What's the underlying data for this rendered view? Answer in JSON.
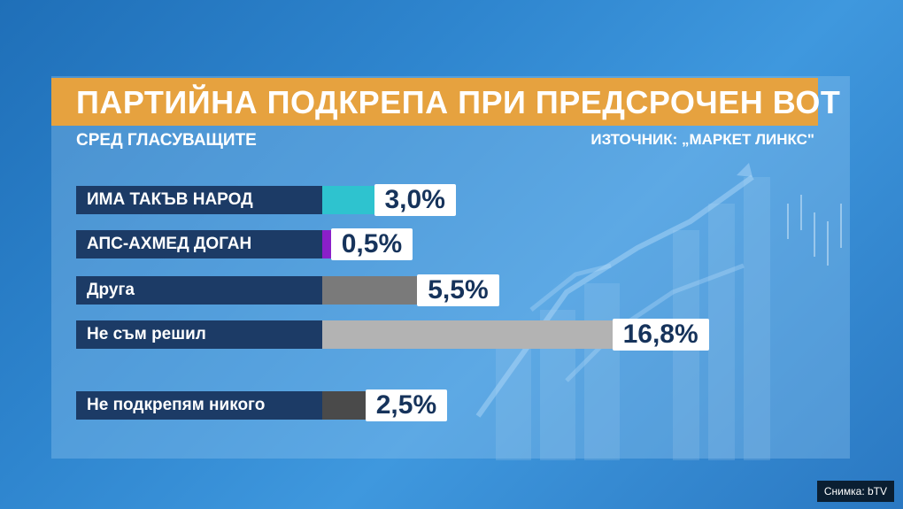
{
  "chart_data": {
    "type": "bar",
    "title": "ПАРТИЙНА ПОДКРЕПА ПРИ ПРЕДСРОЧЕН ВОТ",
    "subtitle": "СРЕД ГЛАСУВАЩИТЕ",
    "source": "ИЗТОЧНИК: „МАРКЕТ ЛИНКС\"",
    "categories": [
      "ИМА ТАКЪВ НАРОД",
      "АПС-АХМЕД ДОГАН",
      "Друга",
      "Не съм решил",
      "Не подкрепям никого"
    ],
    "values": [
      3.0,
      0.5,
      5.5,
      16.8,
      2.5
    ],
    "value_labels": [
      "3,0%",
      "0,5%",
      "5,5%",
      "16,8%",
      "2,5%"
    ],
    "colors": [
      "#2ec3cf",
      "#8b1fc9",
      "#7a7a7a",
      "#b3b3b3",
      "#4a4a4a"
    ],
    "unit": "%",
    "orientation": "horizontal"
  },
  "watermark": "Снимка: bTV"
}
